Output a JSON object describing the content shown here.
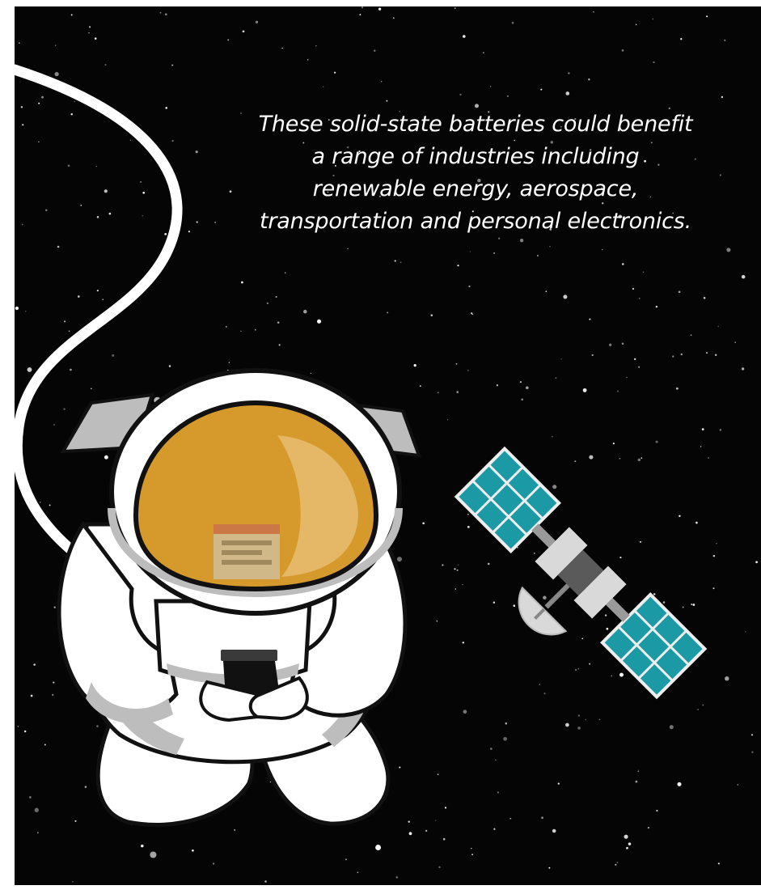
{
  "caption": {
    "text": "These solid-state batteries could benefit a range of industries including renewable energy, aerospace, transportation and personal electronics."
  },
  "palette": {
    "space": "#050505",
    "visor": "#d69a2c",
    "suit": "#ffffff",
    "suit_shadow": "#bdbdbd",
    "outline": "#111111",
    "solar_panel": "#1b9aa6",
    "satellite_body": "#d9d9d9"
  },
  "icons": {
    "astronaut": "astronaut-icon",
    "tether": "tether-cord",
    "satellite": "satellite-icon"
  }
}
